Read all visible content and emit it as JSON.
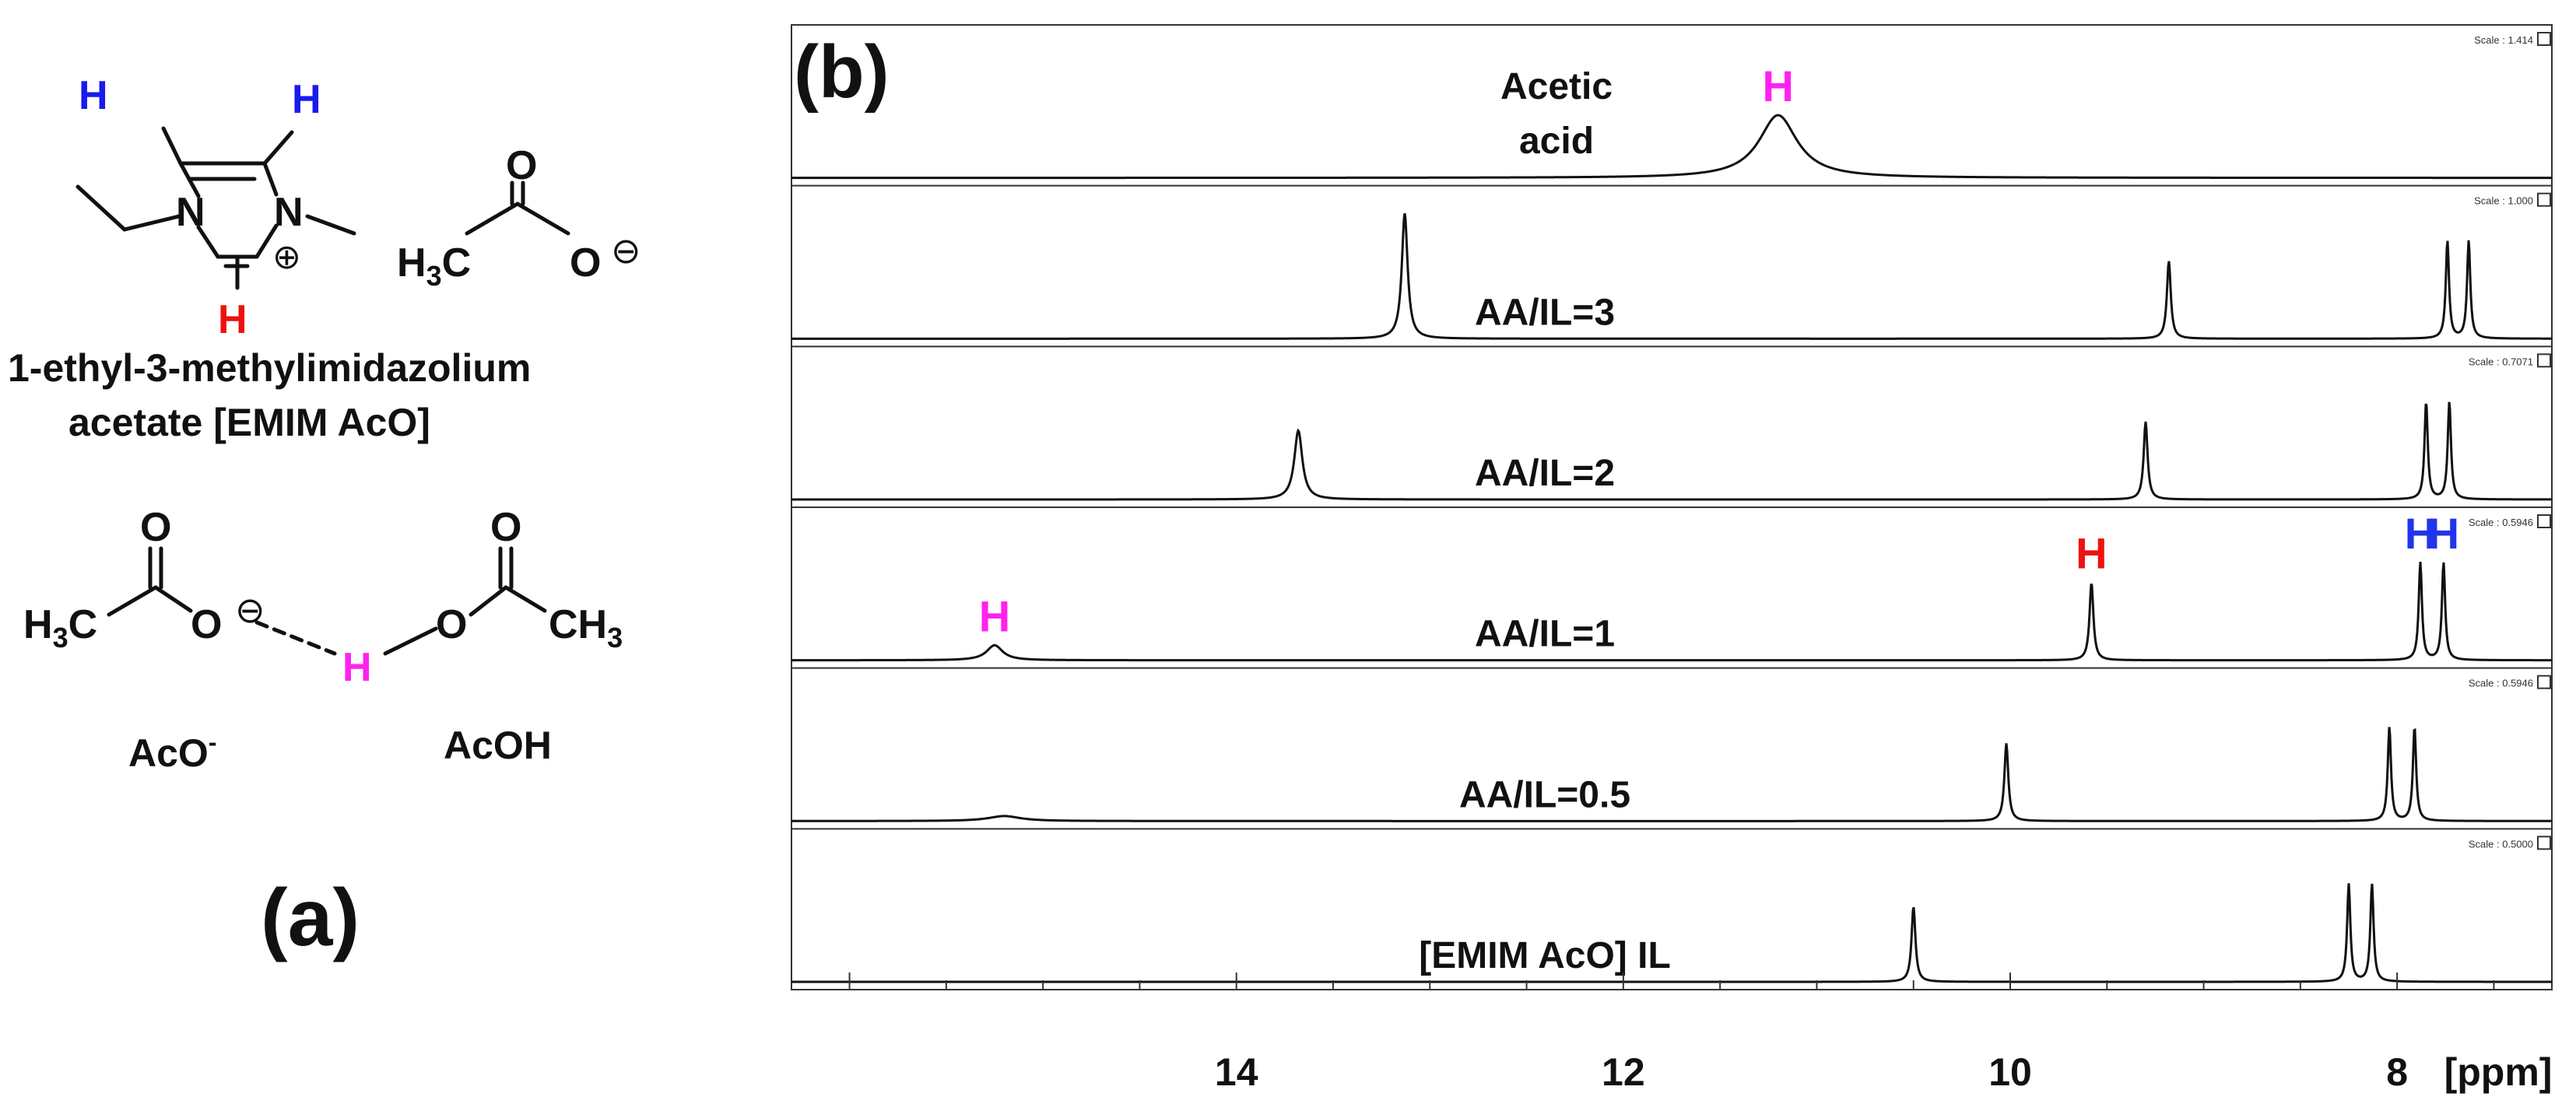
{
  "panel_a": {
    "label": "(a)",
    "emim_name_line1": "1-ethyl-3-methylimidazolium",
    "emim_name_line2": "acetate [EMIM AcO]",
    "atoms": {
      "h_ring_left": "H",
      "h_ring_right": "H",
      "h_c2": "H",
      "n1": "N",
      "n3": "N",
      "plus": "⊕",
      "acetate_o_top": "O",
      "acetate_o_minus": "O",
      "minus": "⊖",
      "acetate_h3c": "H",
      "acetate_h3c_sub": "3",
      "acetate_c": "C",
      "pair_o_top_left": "O",
      "pair_o_top_right": "O",
      "pair_h3c": "H",
      "pair_h3c_sub": "3",
      "pair_h3c_c": "C",
      "pair_o_minus": "O",
      "pair_minus": "⊖",
      "pair_h": "H",
      "pair_o_right": "O",
      "pair_ch": "CH",
      "pair_ch_sub": "3"
    },
    "aco_label": "AcO",
    "aco_sup": "-",
    "acoh_label": "AcOH"
  },
  "chart_data": {
    "type": "line",
    "panel_label": "(b)",
    "xlabel": "[ppm]",
    "x_axis_reversed": true,
    "xlim": [
      16.3,
      7.2
    ],
    "major_ticks": [
      14,
      12,
      10,
      8
    ],
    "tick_labels": [
      "14",
      "12",
      "10",
      "8"
    ],
    "colors": {
      "imidazolium_h2": "#ee1111",
      "imidazolium_h45": "#2233ee",
      "acid_h": "#ff22ee",
      "trace": "#111111"
    },
    "series": [
      {
        "label_lines": [
          "Acetic",
          "acid"
        ],
        "scale": "Scale : 1.414",
        "baseline_noise": 0,
        "peaks": [
          {
            "x": 11.2,
            "height": 0.5,
            "width": 0.12,
            "marker": "H",
            "marker_color": "#ff22ee"
          }
        ]
      },
      {
        "label_lines": [
          "AA/IL=3"
        ],
        "scale": "Scale : 1.000",
        "peaks": [
          {
            "x": 13.13,
            "height": 1.0,
            "width": 0.018
          },
          {
            "x": 9.18,
            "height": 0.62,
            "width": 0.012
          },
          {
            "x": 7.74,
            "height": 0.78,
            "width": 0.01
          },
          {
            "x": 7.63,
            "height": 0.78,
            "width": 0.01
          }
        ]
      },
      {
        "label_lines": [
          "AA/IL=2"
        ],
        "scale": "Scale : 0.7071",
        "peaks": [
          {
            "x": 13.68,
            "height": 0.55,
            "width": 0.025
          },
          {
            "x": 9.3,
            "height": 0.62,
            "width": 0.012
          },
          {
            "x": 7.85,
            "height": 0.78,
            "width": 0.01
          },
          {
            "x": 7.73,
            "height": 0.78,
            "width": 0.01
          }
        ]
      },
      {
        "label_lines": [
          "AA/IL=1"
        ],
        "scale": "Scale : 0.5946",
        "peaks": [
          {
            "x": 15.25,
            "height": 0.12,
            "width": 0.05,
            "marker": "H",
            "marker_color": "#ff22ee"
          },
          {
            "x": 9.58,
            "height": 0.62,
            "width": 0.012,
            "marker": "H",
            "marker_color": "#ee1111"
          },
          {
            "x": 7.88,
            "height": 0.78,
            "width": 0.01,
            "marker": "H",
            "marker_color": "#2233ee"
          },
          {
            "x": 7.76,
            "height": 0.78,
            "width": 0.01,
            "marker": "H",
            "marker_color": "#2233ee"
          }
        ]
      },
      {
        "label_lines": [
          "AA/IL=0.5"
        ],
        "scale": "Scale : 0.5946",
        "peaks": [
          {
            "x": 15.2,
            "height": 0.04,
            "width": 0.1
          },
          {
            "x": 10.02,
            "height": 0.62,
            "width": 0.012
          },
          {
            "x": 8.04,
            "height": 0.75,
            "width": 0.01
          },
          {
            "x": 7.91,
            "height": 0.75,
            "width": 0.01
          }
        ]
      },
      {
        "label_lines": [
          "[EMIM AcO] IL"
        ],
        "scale": "Scale : 0.5000",
        "peaks": [
          {
            "x": 10.5,
            "height": 0.6,
            "width": 0.012
          },
          {
            "x": 8.25,
            "height": 0.78,
            "width": 0.01
          },
          {
            "x": 8.13,
            "height": 0.78,
            "width": 0.01
          }
        ]
      }
    ]
  }
}
